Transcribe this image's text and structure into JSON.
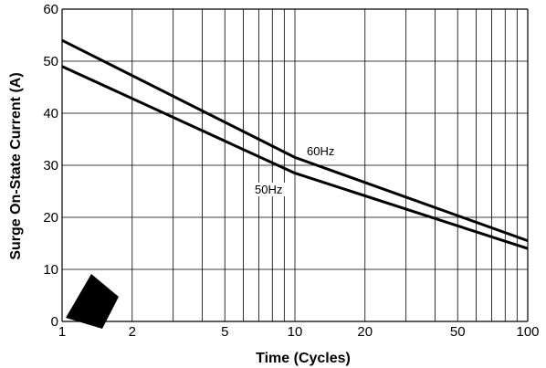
{
  "chart_data": {
    "type": "line",
    "title": "",
    "xlabel": "Time (Cycles)",
    "ylabel": "Surge On-State Current (A)",
    "xscale": "log",
    "xlim": [
      1,
      100
    ],
    "ylim": [
      0,
      60
    ],
    "x_ticks": [
      1,
      2,
      5,
      10,
      20,
      50,
      100
    ],
    "x_tick_labels": [
      "1",
      "2",
      "5",
      "10",
      "20",
      "50",
      "100"
    ],
    "y_ticks": [
      0,
      10,
      20,
      30,
      40,
      50,
      60
    ],
    "y_tick_labels": [
      "0",
      "10",
      "20",
      "30",
      "40",
      "50",
      "60"
    ],
    "grid": true,
    "series": [
      {
        "name": "60Hz",
        "x": [
          1,
          10,
          100
        ],
        "y": [
          54,
          31.5,
          15.5
        ]
      },
      {
        "name": "50Hz",
        "x": [
          1,
          10,
          100
        ],
        "y": [
          49,
          28.5,
          14
        ]
      }
    ],
    "colors": {
      "line": "#000000",
      "grid": "#000000"
    }
  }
}
